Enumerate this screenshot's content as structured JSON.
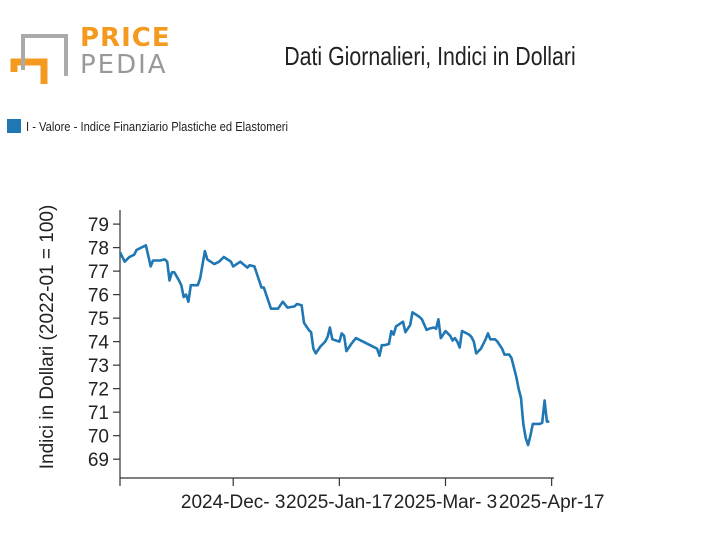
{
  "header": {
    "logo_top": "PRICE",
    "logo_bottom": "PEDIA",
    "title": "Dati Giornalieri, Indici in Dollari"
  },
  "legend": {
    "label": "I - Valore - Indice Finanziario Plastiche ed Elastomeri",
    "color": "#1f77b4"
  },
  "chart_data": {
    "type": "line",
    "title": "Dati Giornalieri, Indici in Dollari",
    "xlabel": "",
    "ylabel": "Indici in Dollari (2022-01 = 100)",
    "ylim": [
      68.2,
      79.6
    ],
    "xlim": [
      "2024-10-16",
      "2025-04-18"
    ],
    "x_ticks": [
      "2024-Dec- 3",
      "2025-Jan-17",
      "2025-Mar- 3",
      "2025-Apr-17"
    ],
    "y_ticks": [
      69,
      70,
      71,
      72,
      73,
      74,
      75,
      76,
      77,
      78,
      79
    ],
    "grid": false,
    "legend_position": "top-left",
    "series": [
      {
        "name": "I - Valore - Indice Finanziario Plastiche ed Elastomeri",
        "color": "#1f77b4",
        "points": [
          [
            "2024-10-16",
            77.8
          ],
          [
            "2024-10-18",
            77.4
          ],
          [
            "2024-10-20",
            77.6
          ],
          [
            "2024-10-22",
            77.7
          ],
          [
            "2024-10-23",
            77.9
          ],
          [
            "2024-10-27",
            78.1
          ],
          [
            "2024-10-29",
            77.2
          ],
          [
            "2024-10-30",
            77.45
          ],
          [
            "2024-11-02",
            77.45
          ],
          [
            "2024-11-04",
            77.5
          ],
          [
            "2024-11-05",
            77.4
          ],
          [
            "2024-11-06",
            76.6
          ],
          [
            "2024-11-07",
            76.95
          ],
          [
            "2024-11-08",
            76.95
          ],
          [
            "2024-11-10",
            76.6
          ],
          [
            "2024-11-11",
            76.4
          ],
          [
            "2024-11-12",
            75.9
          ],
          [
            "2024-11-13",
            76.0
          ],
          [
            "2024-11-14",
            75.7
          ],
          [
            "2024-11-15",
            76.4
          ],
          [
            "2024-11-17",
            76.4
          ],
          [
            "2024-11-18",
            76.4
          ],
          [
            "2024-11-19",
            76.7
          ],
          [
            "2024-11-20",
            77.3
          ],
          [
            "2024-11-21",
            77.85
          ],
          [
            "2024-11-22",
            77.5
          ],
          [
            "2024-11-25",
            77.3
          ],
          [
            "2024-11-27",
            77.4
          ],
          [
            "2024-11-29",
            77.6
          ],
          [
            "2024-12-02",
            77.4
          ],
          [
            "2024-12-03",
            77.2
          ],
          [
            "2024-12-06",
            77.4
          ],
          [
            "2024-12-09",
            77.15
          ],
          [
            "2024-12-10",
            77.25
          ],
          [
            "2024-12-12",
            77.2
          ],
          [
            "2024-12-13",
            76.9
          ],
          [
            "2024-12-15",
            76.3
          ],
          [
            "2024-12-16",
            76.3
          ],
          [
            "2024-12-17",
            76.0
          ],
          [
            "2024-12-19",
            75.4
          ],
          [
            "2024-12-22",
            75.4
          ],
          [
            "2024-12-24",
            75.7
          ],
          [
            "2024-12-26",
            75.45
          ],
          [
            "2024-12-29",
            75.5
          ],
          [
            "2024-12-30",
            75.6
          ],
          [
            "2025-01-01",
            75.55
          ],
          [
            "2025-01-02",
            74.8
          ],
          [
            "2025-01-04",
            74.5
          ],
          [
            "2025-01-05",
            74.4
          ],
          [
            "2025-01-06",
            73.7
          ],
          [
            "2025-01-07",
            73.5
          ],
          [
            "2025-01-08",
            73.65
          ],
          [
            "2025-01-09",
            73.8
          ],
          [
            "2025-01-11",
            74.0
          ],
          [
            "2025-01-12",
            74.2
          ],
          [
            "2025-01-13",
            74.6
          ],
          [
            "2025-01-14",
            74.1
          ],
          [
            "2025-01-17",
            74.0
          ],
          [
            "2025-01-18",
            74.35
          ],
          [
            "2025-01-19",
            74.25
          ],
          [
            "2025-01-20",
            73.6
          ],
          [
            "2025-01-22",
            73.9
          ],
          [
            "2025-01-24",
            74.15
          ],
          [
            "2025-01-27",
            74.0
          ],
          [
            "2025-02-02",
            73.7
          ],
          [
            "2025-02-03",
            73.4
          ],
          [
            "2025-02-04",
            73.85
          ],
          [
            "2025-02-05",
            73.85
          ],
          [
            "2025-02-07",
            73.9
          ],
          [
            "2025-02-08",
            74.45
          ],
          [
            "2025-02-09",
            74.3
          ],
          [
            "2025-02-10",
            74.65
          ],
          [
            "2025-02-13",
            74.85
          ],
          [
            "2025-02-14",
            74.4
          ],
          [
            "2025-02-16",
            74.7
          ],
          [
            "2025-02-17",
            75.25
          ],
          [
            "2025-02-20",
            75.05
          ],
          [
            "2025-02-21",
            74.95
          ],
          [
            "2025-02-23",
            74.5
          ],
          [
            "2025-02-24",
            74.55
          ],
          [
            "2025-02-26",
            74.6
          ],
          [
            "2025-02-27",
            74.55
          ],
          [
            "2025-02-28",
            74.95
          ],
          [
            "2025-03-01",
            74.15
          ],
          [
            "2025-03-03",
            74.45
          ],
          [
            "2025-03-05",
            74.25
          ],
          [
            "2025-03-06",
            74.05
          ],
          [
            "2025-03-07",
            74.15
          ],
          [
            "2025-03-08",
            74.0
          ],
          [
            "2025-03-09",
            73.75
          ],
          [
            "2025-03-10",
            74.45
          ],
          [
            "2025-03-11",
            74.4
          ],
          [
            "2025-03-13",
            74.3
          ],
          [
            "2025-03-14",
            74.2
          ],
          [
            "2025-03-15",
            74.0
          ],
          [
            "2025-03-16",
            73.5
          ],
          [
            "2025-03-18",
            73.7
          ],
          [
            "2025-03-20",
            74.1
          ],
          [
            "2025-03-21",
            74.35
          ],
          [
            "2025-03-22",
            74.1
          ],
          [
            "2025-03-24",
            74.1
          ],
          [
            "2025-03-25",
            74.0
          ],
          [
            "2025-03-27",
            73.7
          ],
          [
            "2025-03-28",
            73.45
          ],
          [
            "2025-03-30",
            73.45
          ],
          [
            "2025-03-31",
            73.3
          ],
          [
            "2025-04-01",
            72.9
          ],
          [
            "2025-04-02",
            72.5
          ],
          [
            "2025-04-03",
            72.0
          ],
          [
            "2025-04-04",
            71.6
          ],
          [
            "2025-04-05",
            70.5
          ],
          [
            "2025-04-06",
            69.9
          ],
          [
            "2025-04-07",
            69.6
          ],
          [
            "2025-04-08",
            70.0
          ],
          [
            "2025-04-09",
            70.5
          ],
          [
            "2025-04-11",
            70.5
          ],
          [
            "2025-04-12",
            70.5
          ],
          [
            "2025-04-13",
            70.55
          ],
          [
            "2025-04-14",
            71.5
          ],
          [
            "2025-04-15",
            70.6
          ],
          [
            "2025-04-16",
            70.6
          ]
        ]
      }
    ]
  }
}
